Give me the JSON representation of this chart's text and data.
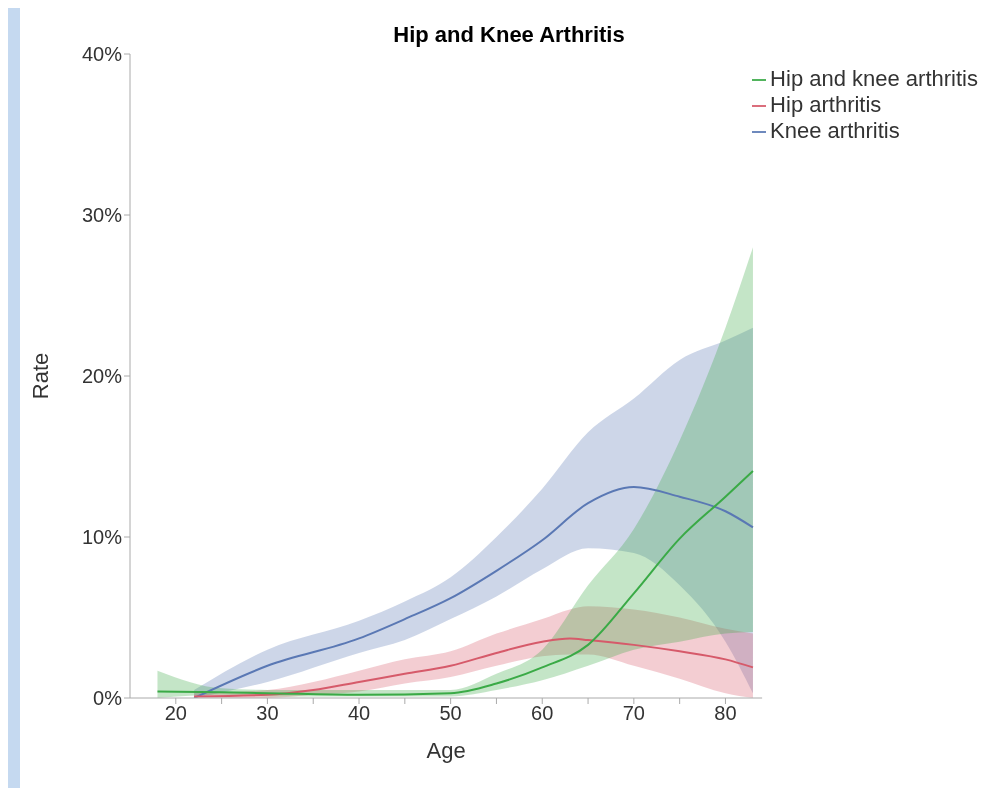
{
  "chart_data": {
    "type": "line",
    "title": "Hip and Knee Arthritis",
    "xlabel": "Age",
    "ylabel": "Rate",
    "xlim": [
      15,
      84
    ],
    "ylim": [
      0,
      40
    ],
    "xticks": [
      20,
      {
        "value": 25,
        "label": null
      },
      30,
      {
        "value": 35,
        "label": null
      },
      40,
      {
        "value": 45,
        "label": null
      },
      50,
      {
        "value": 55,
        "label": null
      },
      60,
      {
        "value": 65,
        "label": null
      },
      70,
      {
        "value": 75,
        "label": null
      },
      80
    ],
    "yticks": [
      {
        "value": 0,
        "label": "0%"
      },
      {
        "value": 10,
        "label": "10%"
      },
      {
        "value": 20,
        "label": "20%"
      },
      {
        "value": 30,
        "label": "30%"
      },
      {
        "value": 40,
        "label": "40%"
      }
    ],
    "grid": false,
    "legend": "top right",
    "marker": "none",
    "line_style": "solid",
    "series": [
      {
        "name": "Knee arthritis",
        "color": "#5a78b4",
        "x": [
          22,
          30,
          40,
          45,
          50,
          55,
          60,
          65,
          70,
          75,
          80,
          83
        ],
        "values": [
          0,
          2.0,
          3.7,
          4.9,
          6.2,
          7.9,
          9.8,
          12.1,
          13.1,
          12.5,
          11.6,
          10.6
        ],
        "lower": [
          0,
          1.0,
          2.8,
          3.6,
          4.9,
          6.3,
          8.0,
          9.3,
          9.0,
          7.0,
          3.5,
          0.3
        ],
        "upper": [
          0.5,
          3.0,
          4.8,
          6.0,
          7.5,
          10.0,
          13.0,
          16.5,
          18.6,
          21.0,
          22.2,
          23.0
        ]
      },
      {
        "name": "Hip arthritis",
        "color": "#d65a6a",
        "x": [
          22,
          30,
          35,
          40,
          45,
          50,
          55,
          60,
          63,
          65,
          70,
          75,
          80,
          83
        ],
        "values": [
          0.1,
          0.2,
          0.5,
          1.0,
          1.5,
          2.0,
          2.8,
          3.5,
          3.7,
          3.6,
          3.3,
          2.9,
          2.4,
          1.9
        ],
        "lower": [
          0,
          0,
          0.2,
          0.4,
          0.9,
          1.3,
          2.0,
          2.6,
          2.7,
          2.7,
          2.0,
          1.2,
          0.3,
          0
        ],
        "upper": [
          0.3,
          0.5,
          1.0,
          1.7,
          2.4,
          2.9,
          4.0,
          4.9,
          5.5,
          5.7,
          5.5,
          5.0,
          4.3,
          4.0
        ]
      },
      {
        "name": "Hip and knee arthritis",
        "color": "#3aaa46",
        "x": [
          18,
          25,
          30,
          40,
          50,
          55,
          60,
          65,
          70,
          75,
          80,
          83
        ],
        "values": [
          0.4,
          0.35,
          0.3,
          0.2,
          0.3,
          0.9,
          1.9,
          3.3,
          6.5,
          9.9,
          12.5,
          14.1
        ],
        "lower": [
          0,
          0.2,
          0.1,
          0.1,
          0.1,
          0.5,
          1.1,
          2.0,
          3.0,
          3.5,
          4.0,
          4.1
        ],
        "upper": [
          1.7,
          0.6,
          0.5,
          0.5,
          0.5,
          1.5,
          3.0,
          7.0,
          10.5,
          16.0,
          23.0,
          28.0
        ]
      }
    ]
  }
}
